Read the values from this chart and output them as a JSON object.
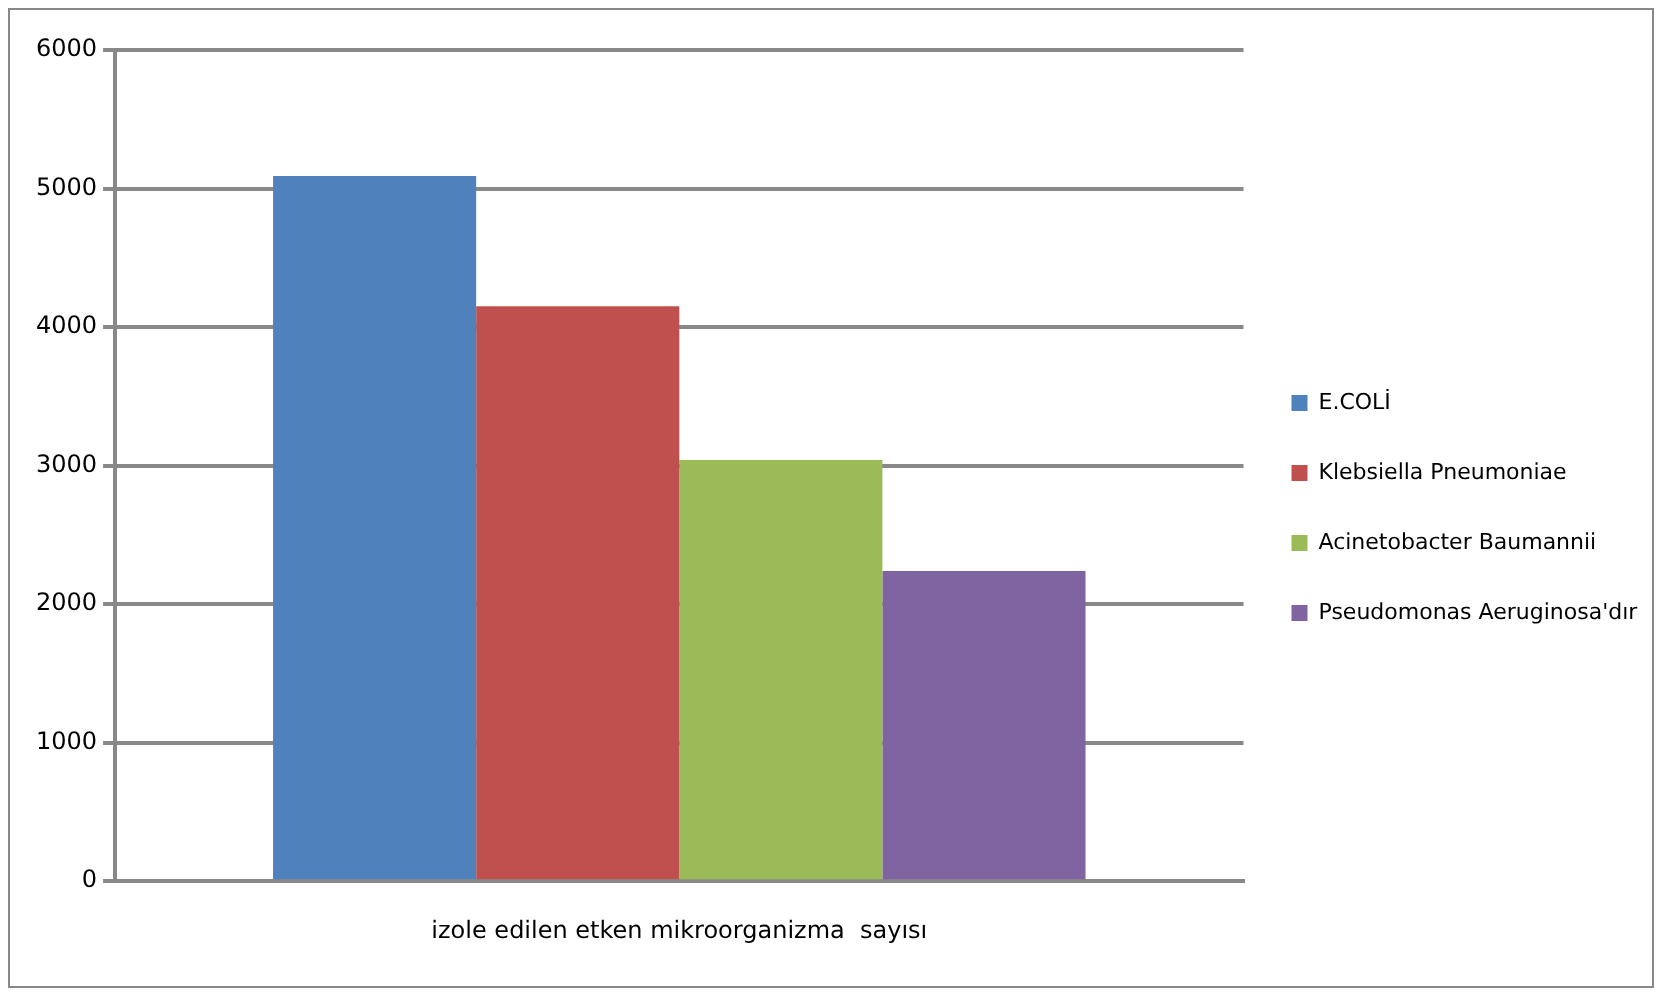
{
  "chart_data": {
    "type": "bar",
    "categories": [
      "izole edilen etken mikroorganizma  sayısı"
    ],
    "series": [
      {
        "name": "E.COLİ",
        "color": "#4f81bd",
        "values": [
          5090
        ]
      },
      {
        "name": "Klebsiella Pneumoniae",
        "color": "#c0504d",
        "values": [
          4150
        ]
      },
      {
        "name": "Acinetobacter Baumannii",
        "color": "#9bbb59",
        "values": [
          3040
        ]
      },
      {
        "name": "Pseudomonas Aeruginosa'dır",
        "color": "#8064a2",
        "values": [
          2240
        ]
      }
    ],
    "ylim": [
      0,
      6000
    ],
    "yticks": [
      0,
      1000,
      2000,
      3000,
      4000,
      5000,
      6000
    ],
    "grid": "y",
    "legend": "right"
  }
}
